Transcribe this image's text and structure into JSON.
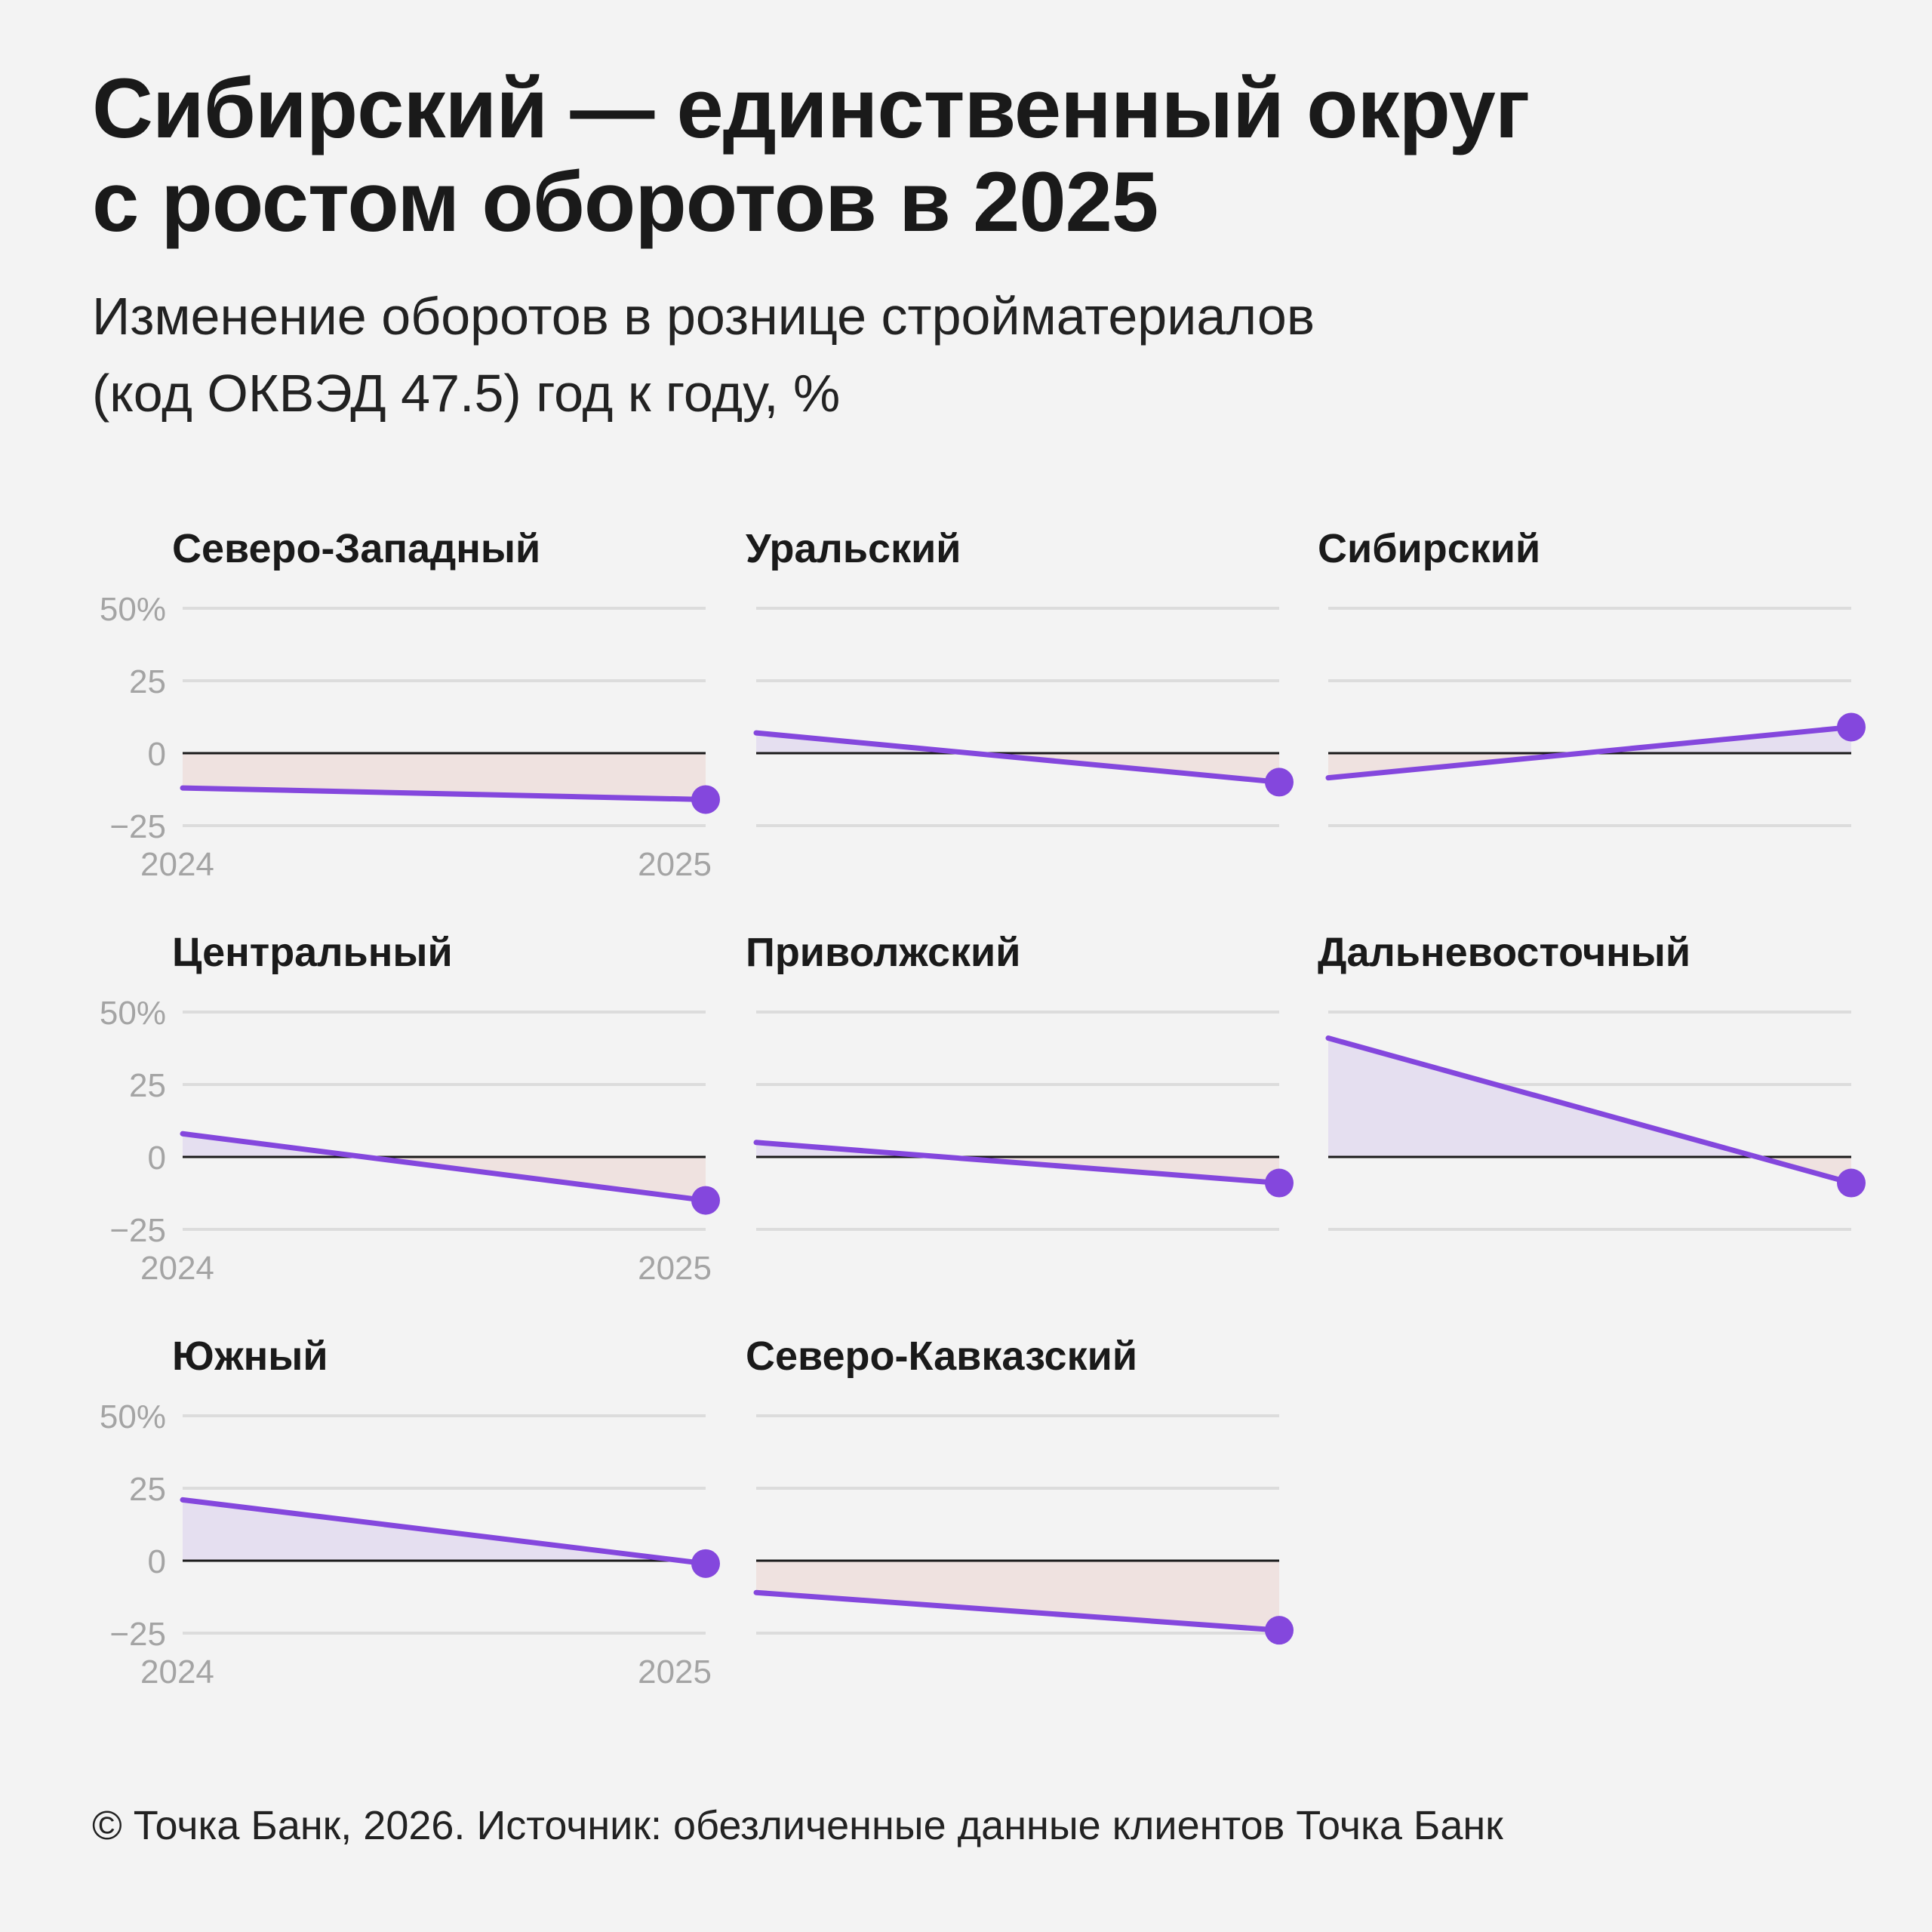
{
  "title_lines": [
    "Сибирский — единственный округ",
    "с ростом оборотов в 2025"
  ],
  "subtitle_lines": [
    "Изменение оборотов в рознице стройматериалов",
    "(код ОКВЭД 47.5) год к году, %"
  ],
  "footer": "© Точка Банк, 2026. Источник: обезличенные данные клиентов Точка Банк",
  "colors": {
    "line": "#8447dd",
    "positive_fill": "#e5dff0",
    "negative_fill": "#efe2e0",
    "grid": "#dcdcdc",
    "zero_line": "#1a1a1a",
    "tick_text": "#a4a4a4"
  },
  "chart_data": {
    "type": "area",
    "layout": "small multiples, 3 columns",
    "x": [
      "2024",
      "2025"
    ],
    "ylim": [
      -25,
      50
    ],
    "yticks": [
      50,
      25,
      0,
      -25
    ],
    "ytick_labels": [
      "50%",
      "25",
      "0",
      "−25"
    ],
    "series": [
      {
        "name": "Северо-Западный",
        "values": [
          -12,
          -16
        ],
        "show_y_axis": true,
        "show_x_axis": true
      },
      {
        "name": "Уральский",
        "values": [
          7,
          -10
        ],
        "show_y_axis": false,
        "show_x_axis": false
      },
      {
        "name": "Сибирский",
        "values": [
          -8.5,
          9
        ],
        "show_y_axis": false,
        "show_x_axis": false
      },
      {
        "name": "Центральный",
        "values": [
          8,
          -15
        ],
        "show_y_axis": true,
        "show_x_axis": true
      },
      {
        "name": "Приволжский",
        "values": [
          5,
          -9
        ],
        "show_y_axis": false,
        "show_x_axis": false
      },
      {
        "name": "Дальневосточный",
        "values": [
          41,
          -9
        ],
        "show_y_axis": false,
        "show_x_axis": false
      },
      {
        "name": "Южный",
        "values": [
          21,
          -1
        ],
        "show_y_axis": true,
        "show_x_axis": true
      },
      {
        "name": "Северо-Кавказский",
        "values": [
          -11,
          -24
        ],
        "show_y_axis": false,
        "show_x_axis": false
      }
    ]
  }
}
